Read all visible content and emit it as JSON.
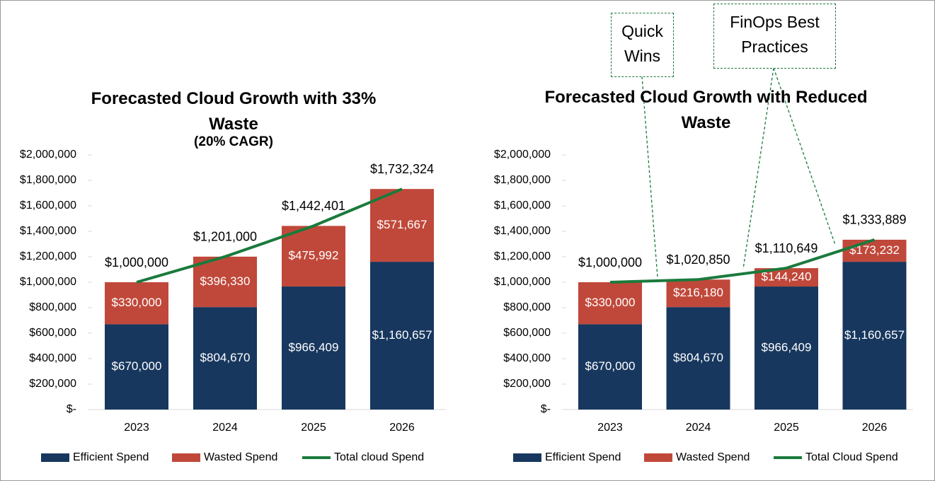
{
  "chart_data": [
    {
      "type": "stacked_bar_line",
      "title": "Forecasted Cloud Growth with 33% Waste",
      "subtitle": "(20% CAGR)",
      "categories": [
        "2023",
        "2024",
        "2025",
        "2026"
      ],
      "series": [
        {
          "name": "Efficient Spend",
          "color": "#17375e",
          "values": [
            670000,
            804670,
            966409,
            1160657
          ],
          "value_labels": [
            "$670,000",
            "$804,670",
            "$966,409",
            "$1,160,657"
          ]
        },
        {
          "name": "Wasted Spend",
          "color": "#c0483a",
          "values": [
            330000,
            396330,
            475992,
            571667
          ],
          "value_labels": [
            "$330,000",
            "$396,330",
            "$475,992",
            "$571,667"
          ]
        },
        {
          "name": "Total cloud Spend",
          "type": "line",
          "color": "#1a7a3c",
          "values": [
            1000000,
            1201000,
            1442401,
            1732324
          ],
          "value_labels": [
            "$1,000,000",
            "$1,201,000",
            "$1,442,401",
            "$1,732,324"
          ]
        }
      ],
      "ylim": [
        0,
        2000000
      ],
      "yticks": [
        {
          "value": 0,
          "label": "$-"
        },
        {
          "value": 200000,
          "label": "$200,000"
        },
        {
          "value": 400000,
          "label": "$400,000"
        },
        {
          "value": 600000,
          "label": "$600,000"
        },
        {
          "value": 800000,
          "label": "$800,000"
        },
        {
          "value": 1000000,
          "label": "$1,000,000"
        },
        {
          "value": 1200000,
          "label": "$1,200,000"
        },
        {
          "value": 1400000,
          "label": "$1,400,000"
        },
        {
          "value": 1600000,
          "label": "$1,600,000"
        },
        {
          "value": 1800000,
          "label": "$1,800,000"
        },
        {
          "value": 2000000,
          "label": "$2,000,000"
        }
      ],
      "legend": "bottom"
    },
    {
      "type": "stacked_bar_line",
      "title": "Forecasted Cloud Growth with Reduced Waste",
      "annotations": [
        "Quick Wins",
        "FinOps Best Practices"
      ],
      "categories": [
        "2023",
        "2024",
        "2025",
        "2026"
      ],
      "series": [
        {
          "name": "Efficient Spend",
          "color": "#17375e",
          "values": [
            670000,
            804670,
            966409,
            1160657
          ],
          "value_labels": [
            "$670,000",
            "$804,670",
            "$966,409",
            "$1,160,657"
          ]
        },
        {
          "name": "Wasted Spend",
          "color": "#c0483a",
          "values": [
            330000,
            216180,
            144240,
            173232
          ],
          "value_labels": [
            "$330,000",
            "$216,180",
            "$144,240",
            "$173,232"
          ]
        },
        {
          "name": "Total Cloud Spend",
          "type": "line",
          "color": "#1a7a3c",
          "values": [
            1000000,
            1020850,
            1110649,
            1333889
          ],
          "value_labels": [
            "$1,000,000",
            "$1,020,850",
            "$1,110,649",
            "$1,333,889"
          ]
        }
      ],
      "ylim": [
        0,
        2000000
      ],
      "yticks": [
        {
          "value": 0,
          "label": "$-"
        },
        {
          "value": 200000,
          "label": "$200,000"
        },
        {
          "value": 400000,
          "label": "$400,000"
        },
        {
          "value": 600000,
          "label": "$600,000"
        },
        {
          "value": 800000,
          "label": "$800,000"
        },
        {
          "value": 1000000,
          "label": "$1,000,000"
        },
        {
          "value": 1200000,
          "label": "$1,200,000"
        },
        {
          "value": 1400000,
          "label": "$1,400,000"
        },
        {
          "value": 1600000,
          "label": "$1,600,000"
        },
        {
          "value": 1800000,
          "label": "$1,800,000"
        },
        {
          "value": 2000000,
          "label": "$2,000,000"
        }
      ],
      "legend": "bottom"
    }
  ]
}
